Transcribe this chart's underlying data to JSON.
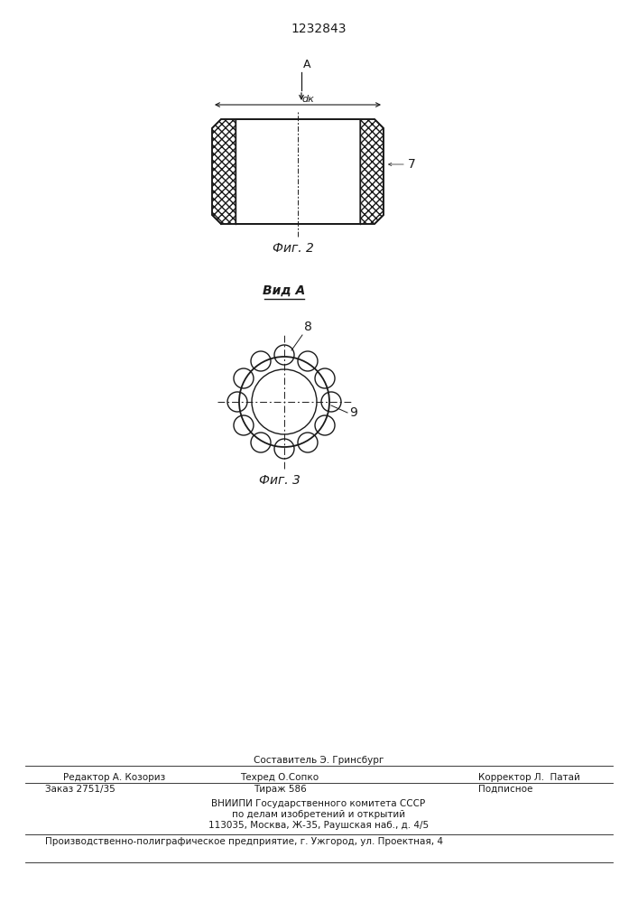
{
  "title": "1232843",
  "fig2_label": "Фиг. 2",
  "fig3_label": "Фиг. 3",
  "vid_a_label": "Вид A",
  "label_7": "7",
  "label_8": "8",
  "label_9": "9",
  "label_A": "A",
  "label_dk": "dк",
  "footer_line1": "Составитель Э. Гринсбург",
  "footer_editor": "Редактор А. Козориз",
  "footer_techred": "Техред О.Сопко",
  "footer_corrector": "Корректор Л.  Патай",
  "footer_zakaz": "Заказ 2751/35",
  "footer_tirazh": "Тираж 586",
  "footer_podpisnoe": "Подписное",
  "footer_line4": "ВНИИПИ Государственного комитета СССР",
  "footer_line5": "по делам изобретений и открытий",
  "footer_line6": "113035, Москва, Ж-35, Раушская наб., д. 4/5",
  "footer_line7": "Производственно-полиграфическое предприятие, г. Ужгород, ул. Проектная, 4",
  "bg_color": "#ffffff",
  "line_color": "#1a1a1a"
}
